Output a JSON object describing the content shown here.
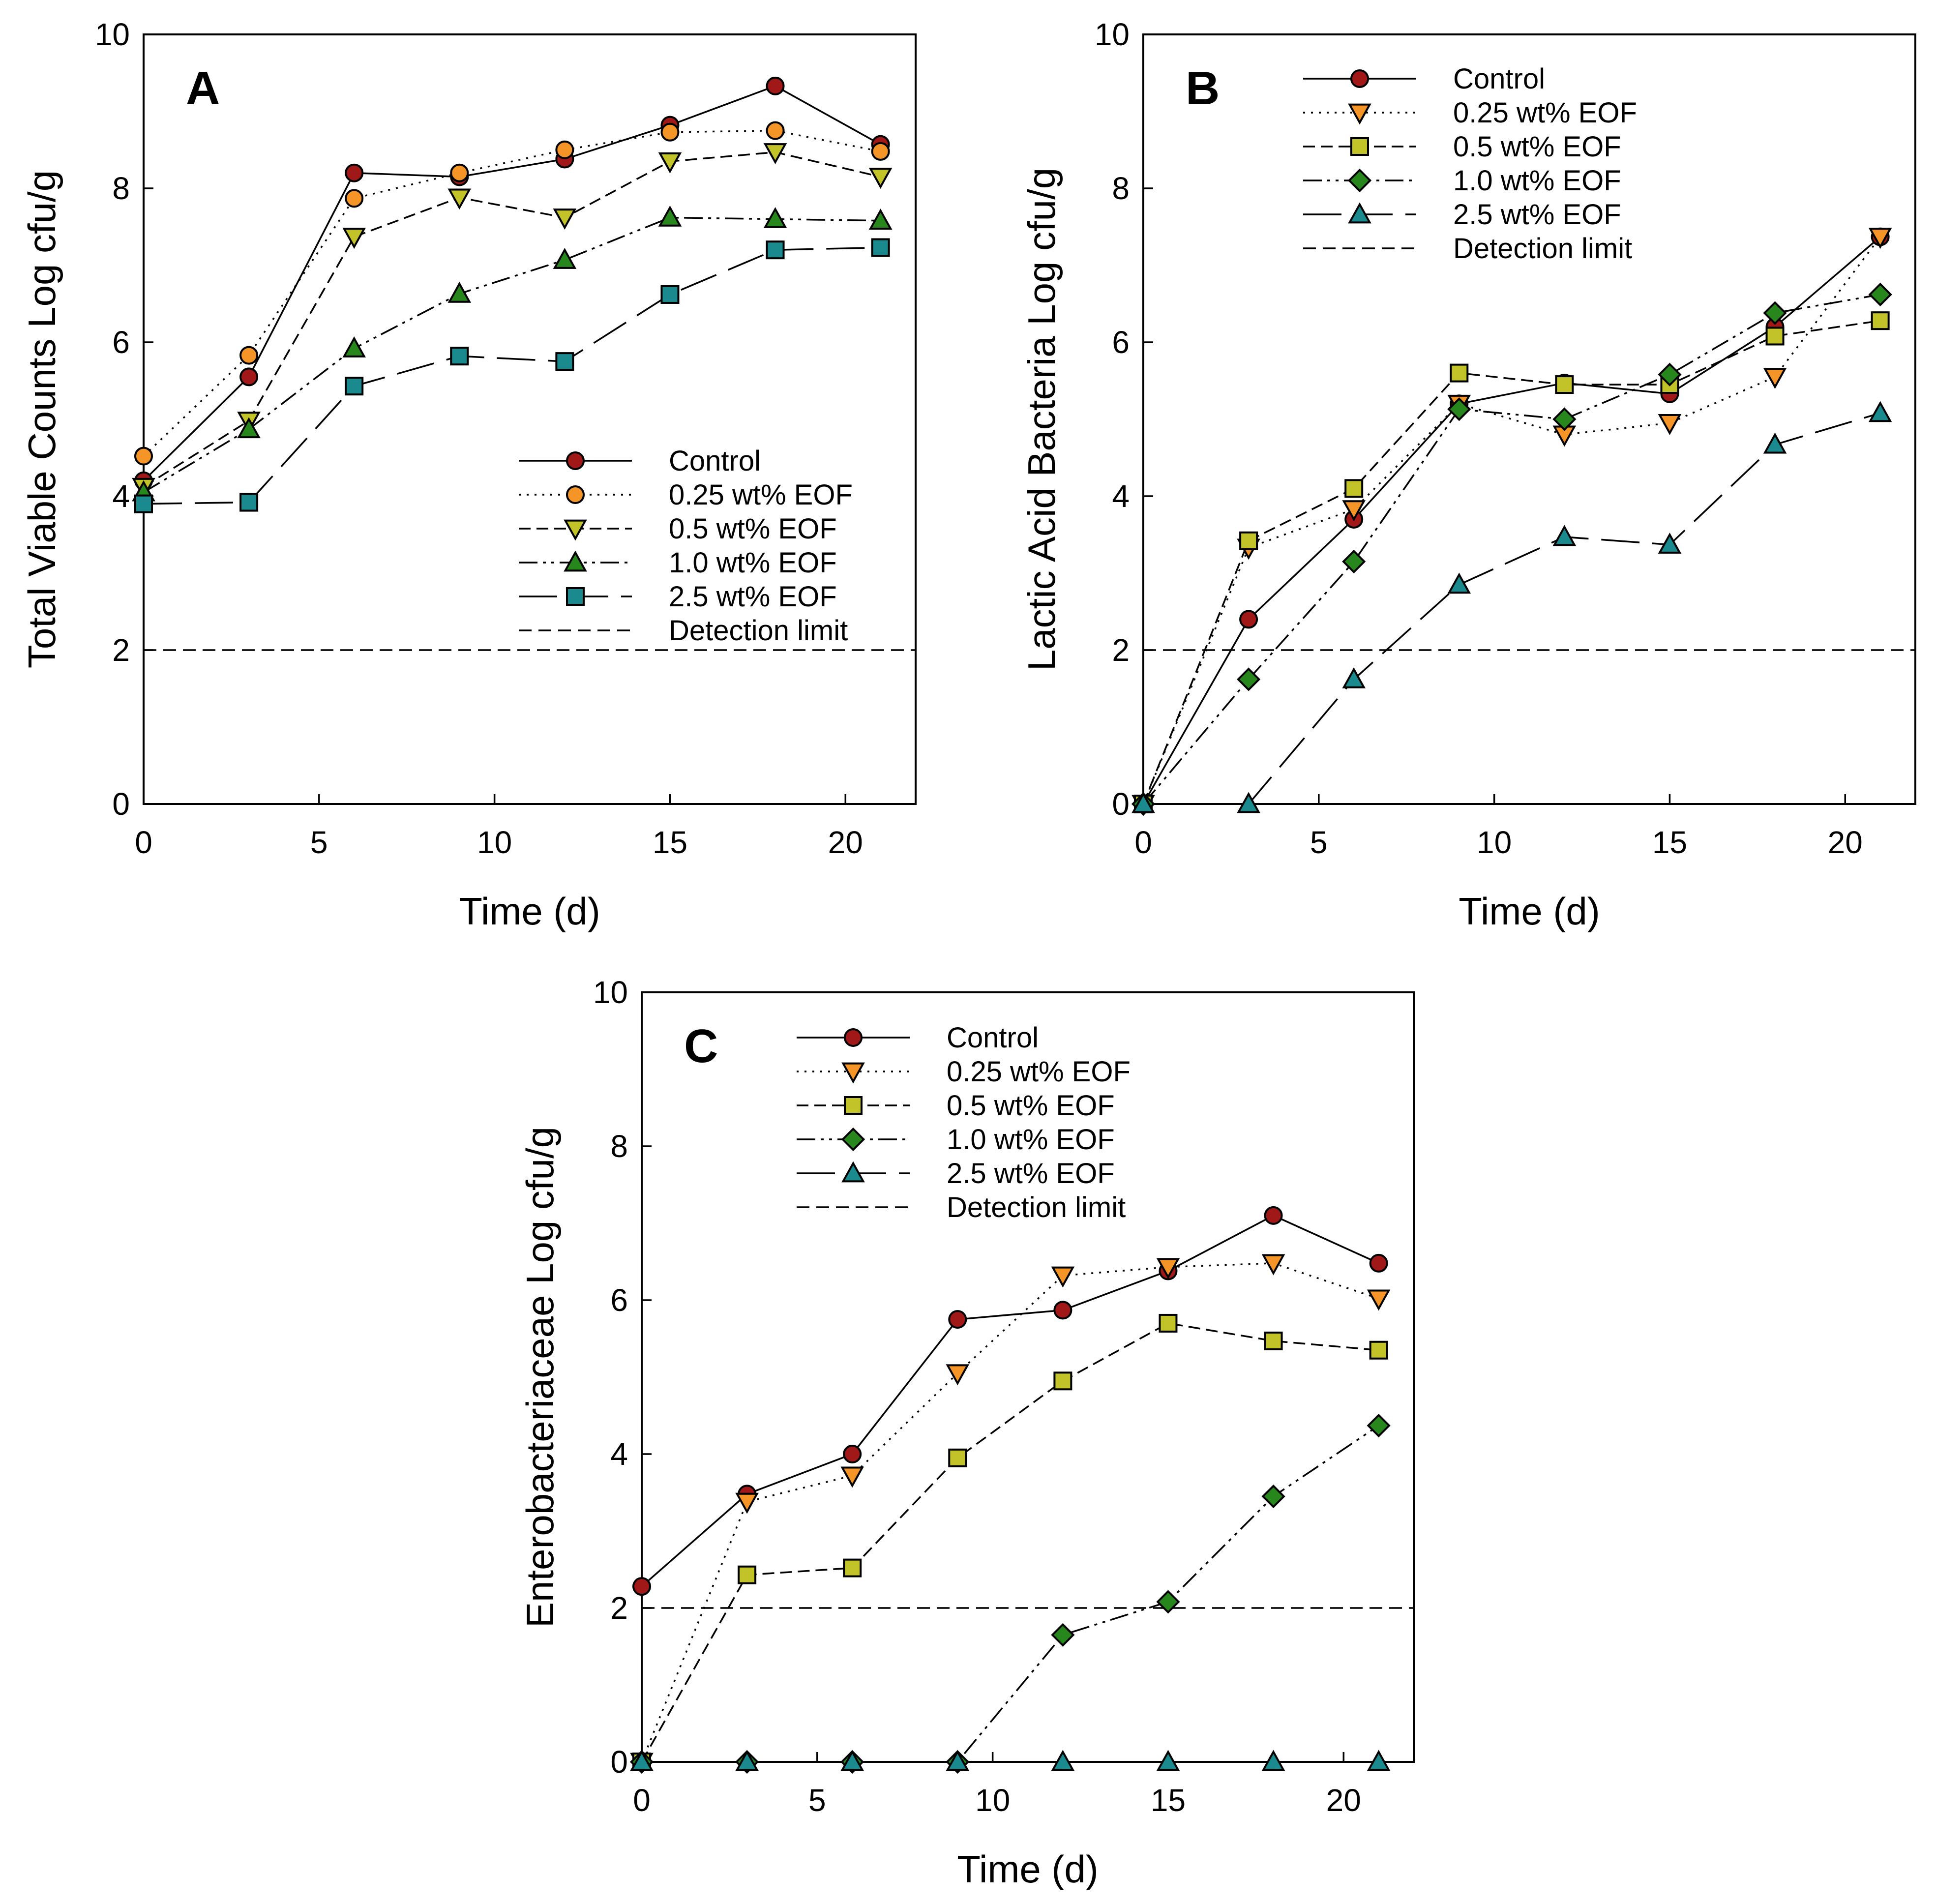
{
  "chart_data": [
    {
      "type": "line",
      "panel_label": "A",
      "xlabel": "Time (d)",
      "ylabel": "Total Viable Counts Log cfu/g",
      "xlim": [
        0,
        22
      ],
      "ylim": [
        0,
        10
      ],
      "xticks": [
        "0",
        "5",
        "10",
        "15",
        "20"
      ],
      "yticks": [
        "0",
        "2",
        "4",
        "6",
        "8",
        "10"
      ],
      "legend_position": "lower-right",
      "detection_limit": 2,
      "detection_label": "Detection limit",
      "x": [
        0,
        3,
        6,
        9,
        12,
        15,
        18,
        21
      ],
      "series": [
        {
          "name": "Control",
          "marker": "circle",
          "dash": "solid",
          "color": "#a01818",
          "values": [
            4.2,
            5.55,
            8.2,
            8.15,
            8.38,
            8.82,
            9.33,
            8.57
          ]
        },
        {
          "name": "0.25 wt% EOF",
          "marker": "circle",
          "dash": "dotted",
          "color": "#f59528",
          "values": [
            4.52,
            5.83,
            7.87,
            8.2,
            8.5,
            8.73,
            8.75,
            8.48
          ]
        },
        {
          "name": "0.5 wt% EOF",
          "marker": "triangle-down",
          "dash": "dashed",
          "color": "#c2c229",
          "values": [
            4.12,
            4.98,
            7.37,
            7.88,
            7.62,
            8.35,
            8.47,
            8.15
          ]
        },
        {
          "name": "1.0 wt% EOF",
          "marker": "triangle-up",
          "dash": "dashdotdot",
          "color": "#27861c",
          "values": [
            4.05,
            4.87,
            5.92,
            6.63,
            7.07,
            7.62,
            7.6,
            7.58
          ]
        },
        {
          "name": "2.5 wt% EOF",
          "marker": "square",
          "dash": "longdash",
          "color": "#1b8a8f",
          "values": [
            3.9,
            3.92,
            5.43,
            5.82,
            5.75,
            6.62,
            7.2,
            7.23
          ]
        }
      ]
    },
    {
      "type": "line",
      "panel_label": "B",
      "xlabel": "Time (d)",
      "ylabel": "Lactic Acid Bacteria Log cfu/g",
      "xlim": [
        0,
        22
      ],
      "ylim": [
        0,
        10
      ],
      "xticks": [
        "0",
        "5",
        "10",
        "15",
        "20"
      ],
      "yticks": [
        "0",
        "2",
        "4",
        "6",
        "8",
        "10"
      ],
      "legend_position": "top-left",
      "detection_limit": 2,
      "detection_label": "Detection limit",
      "x": [
        0,
        3,
        6,
        9,
        12,
        15,
        18,
        21
      ],
      "series": [
        {
          "name": "Control",
          "marker": "circle",
          "dash": "solid",
          "color": "#a01818",
          "values": [
            0,
            2.4,
            3.7,
            5.2,
            5.47,
            5.33,
            6.2,
            7.37
          ]
        },
        {
          "name": "0.25 wt% EOF",
          "marker": "triangle-down",
          "dash": "dotted",
          "color": "#f59528",
          "values": [
            0,
            3.33,
            3.83,
            5.2,
            4.8,
            4.95,
            5.55,
            7.37
          ]
        },
        {
          "name": "0.5 wt% EOF",
          "marker": "square",
          "dash": "dashed",
          "color": "#c2c229",
          "values": [
            0,
            3.42,
            4.1,
            5.6,
            5.45,
            5.45,
            6.08,
            6.28
          ]
        },
        {
          "name": "1.0 wt% EOF",
          "marker": "diamond",
          "dash": "dashdotdot",
          "color": "#27861c",
          "values": [
            0,
            1.62,
            3.15,
            5.13,
            5.0,
            5.58,
            6.38,
            6.62
          ]
        },
        {
          "name": "2.5 wt% EOF",
          "marker": "triangle-up",
          "dash": "longdash",
          "color": "#1b8a8f",
          "values": [
            0,
            0,
            1.62,
            2.85,
            3.47,
            3.37,
            4.67,
            5.08
          ]
        }
      ]
    },
    {
      "type": "line",
      "panel_label": "C",
      "xlabel": "Time (d)",
      "ylabel": "Enterobacteriaceae Log cfu/g",
      "xlim": [
        0,
        22
      ],
      "ylim": [
        0,
        10
      ],
      "xticks": [
        "0",
        "5",
        "10",
        "15",
        "20"
      ],
      "yticks": [
        "0",
        "2",
        "4",
        "6",
        "8",
        "10"
      ],
      "legend_position": "top-left",
      "detection_limit": 2,
      "detection_label": "Detection limit",
      "x": [
        0,
        3,
        6,
        9,
        12,
        15,
        18,
        21
      ],
      "series": [
        {
          "name": "Control",
          "marker": "circle",
          "dash": "solid",
          "color": "#a01818",
          "values": [
            2.28,
            3.48,
            4.0,
            5.75,
            5.87,
            6.38,
            7.1,
            6.48
          ]
        },
        {
          "name": "0.25 wt% EOF",
          "marker": "triangle-down",
          "dash": "dotted",
          "color": "#f59528",
          "values": [
            0,
            3.38,
            3.72,
            5.05,
            6.32,
            6.43,
            6.48,
            6.02
          ]
        },
        {
          "name": "0.5 wt% EOF",
          "marker": "square",
          "dash": "dashed",
          "color": "#c2c229",
          "values": [
            0,
            2.43,
            2.52,
            3.95,
            4.95,
            5.7,
            5.47,
            5.35
          ]
        },
        {
          "name": "1.0 wt% EOF",
          "marker": "diamond",
          "dash": "dashdotdot",
          "color": "#27861c",
          "values": [
            0,
            0,
            0,
            0,
            1.65,
            2.08,
            3.45,
            4.37
          ]
        },
        {
          "name": "2.5 wt% EOF",
          "marker": "triangle-up",
          "dash": "longdash",
          "color": "#1b8a8f",
          "values": [
            0,
            0,
            0,
            0,
            0,
            0,
            0,
            0
          ]
        }
      ]
    }
  ]
}
